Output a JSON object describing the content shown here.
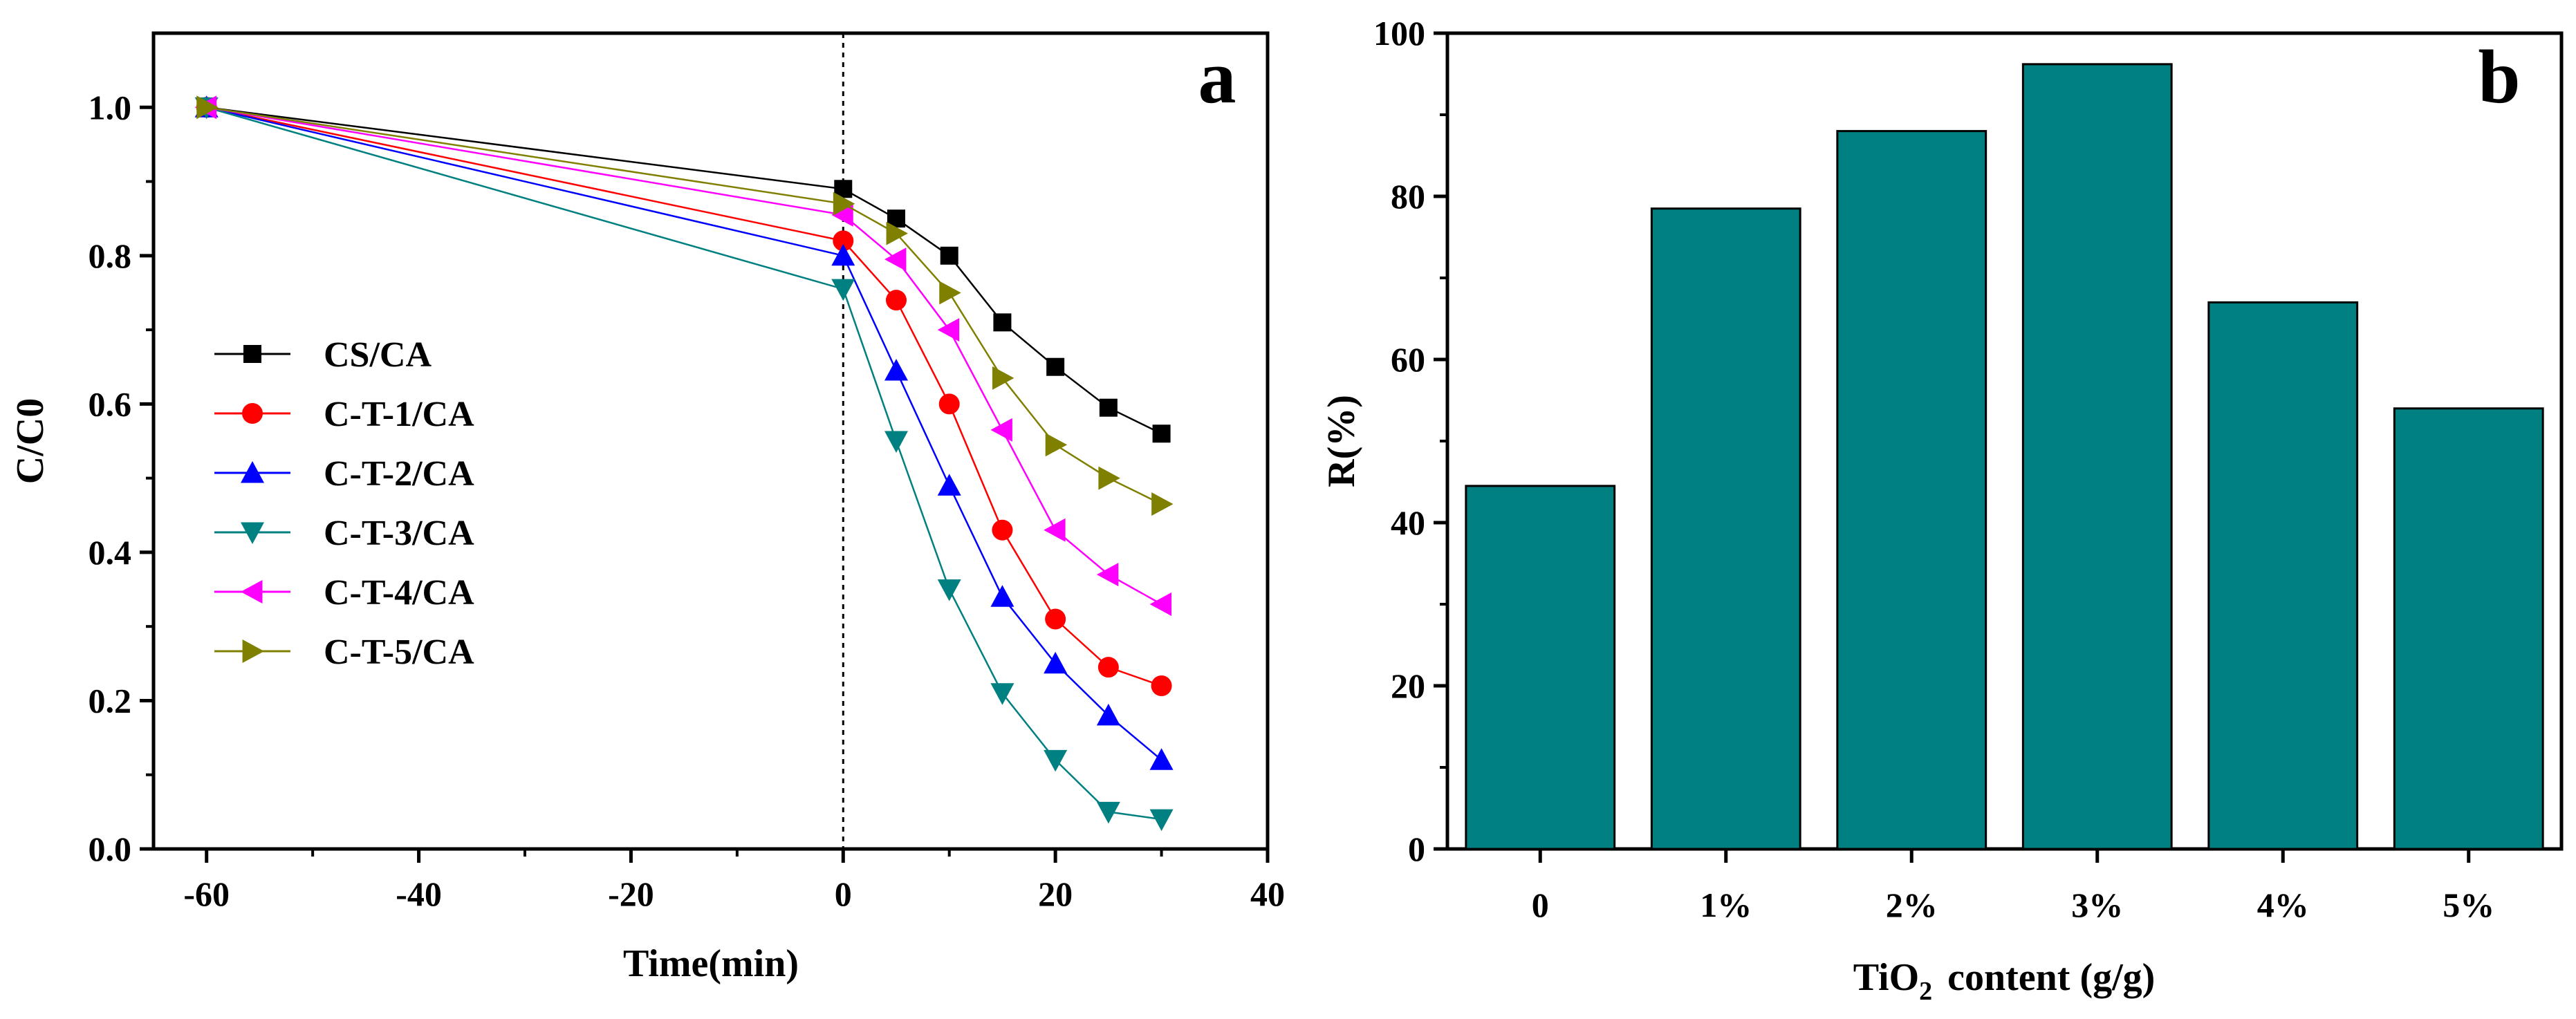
{
  "chart_data": [
    {
      "type": "line",
      "panel_label": "a",
      "xlabel": "Time(min)",
      "ylabel": "C/C0",
      "xlim": [
        -65,
        40
      ],
      "ylim": [
        0.0,
        1.1
      ],
      "x_ticks": [
        -60,
        -40,
        -20,
        0,
        20,
        40
      ],
      "x_tick_labels": [
        "-60",
        "-40",
        "-20",
        "0",
        "20",
        "40"
      ],
      "y_ticks": [
        0.0,
        0.2,
        0.4,
        0.6,
        0.8,
        1.0
      ],
      "y_tick_labels": [
        "0.0",
        "0.2",
        "0.4",
        "0.6",
        "0.8",
        "1.0"
      ],
      "reference_line_x": 0,
      "legend_position": "middle-left",
      "x": [
        -60,
        0,
        5,
        10,
        15,
        20,
        25,
        30
      ],
      "series": [
        {
          "name": "CS/CA",
          "color": "#000000",
          "marker": "square",
          "values": [
            1.0,
            0.89,
            0.85,
            0.8,
            0.71,
            0.65,
            0.595,
            0.56
          ]
        },
        {
          "name": "C-T-1/CA",
          "color": "#ff0000",
          "marker": "circle",
          "values": [
            1.0,
            0.82,
            0.74,
            0.6,
            0.43,
            0.31,
            0.245,
            0.22
          ]
        },
        {
          "name": "C-T-2/CA",
          "color": "#0000ff",
          "marker": "triangle-up",
          "values": [
            1.0,
            0.8,
            0.645,
            0.49,
            0.34,
            0.25,
            0.18,
            0.12
          ]
        },
        {
          "name": "C-T-3/CA",
          "color": "#008080",
          "marker": "triangle-down",
          "values": [
            1.0,
            0.755,
            0.55,
            0.35,
            0.21,
            0.12,
            0.05,
            0.04
          ]
        },
        {
          "name": "C-T-4/CA",
          "color": "#ff00ff",
          "marker": "triangle-left",
          "values": [
            1.0,
            0.855,
            0.795,
            0.7,
            0.565,
            0.43,
            0.37,
            0.33
          ]
        },
        {
          "name": "C-T-5/CA",
          "color": "#808000",
          "marker": "triangle-right",
          "values": [
            1.0,
            0.87,
            0.83,
            0.75,
            0.635,
            0.545,
            0.5,
            0.465
          ]
        }
      ]
    },
    {
      "type": "bar",
      "panel_label": "b",
      "xlabel_main": "TiO",
      "xlabel_sub": "2",
      "xlabel_rest": "content (g/g)",
      "ylabel": "R(%)",
      "ylim": [
        0,
        100
      ],
      "y_ticks": [
        0,
        20,
        40,
        60,
        80,
        100
      ],
      "y_tick_labels": [
        "0",
        "20",
        "40",
        "60",
        "80",
        "100"
      ],
      "categories": [
        "0",
        "1%",
        "2%",
        "3%",
        "4%",
        "5%"
      ],
      "values": [
        44.5,
        78.5,
        88.0,
        96.2,
        67.0,
        54.0
      ],
      "bar_color": "#008080"
    }
  ]
}
